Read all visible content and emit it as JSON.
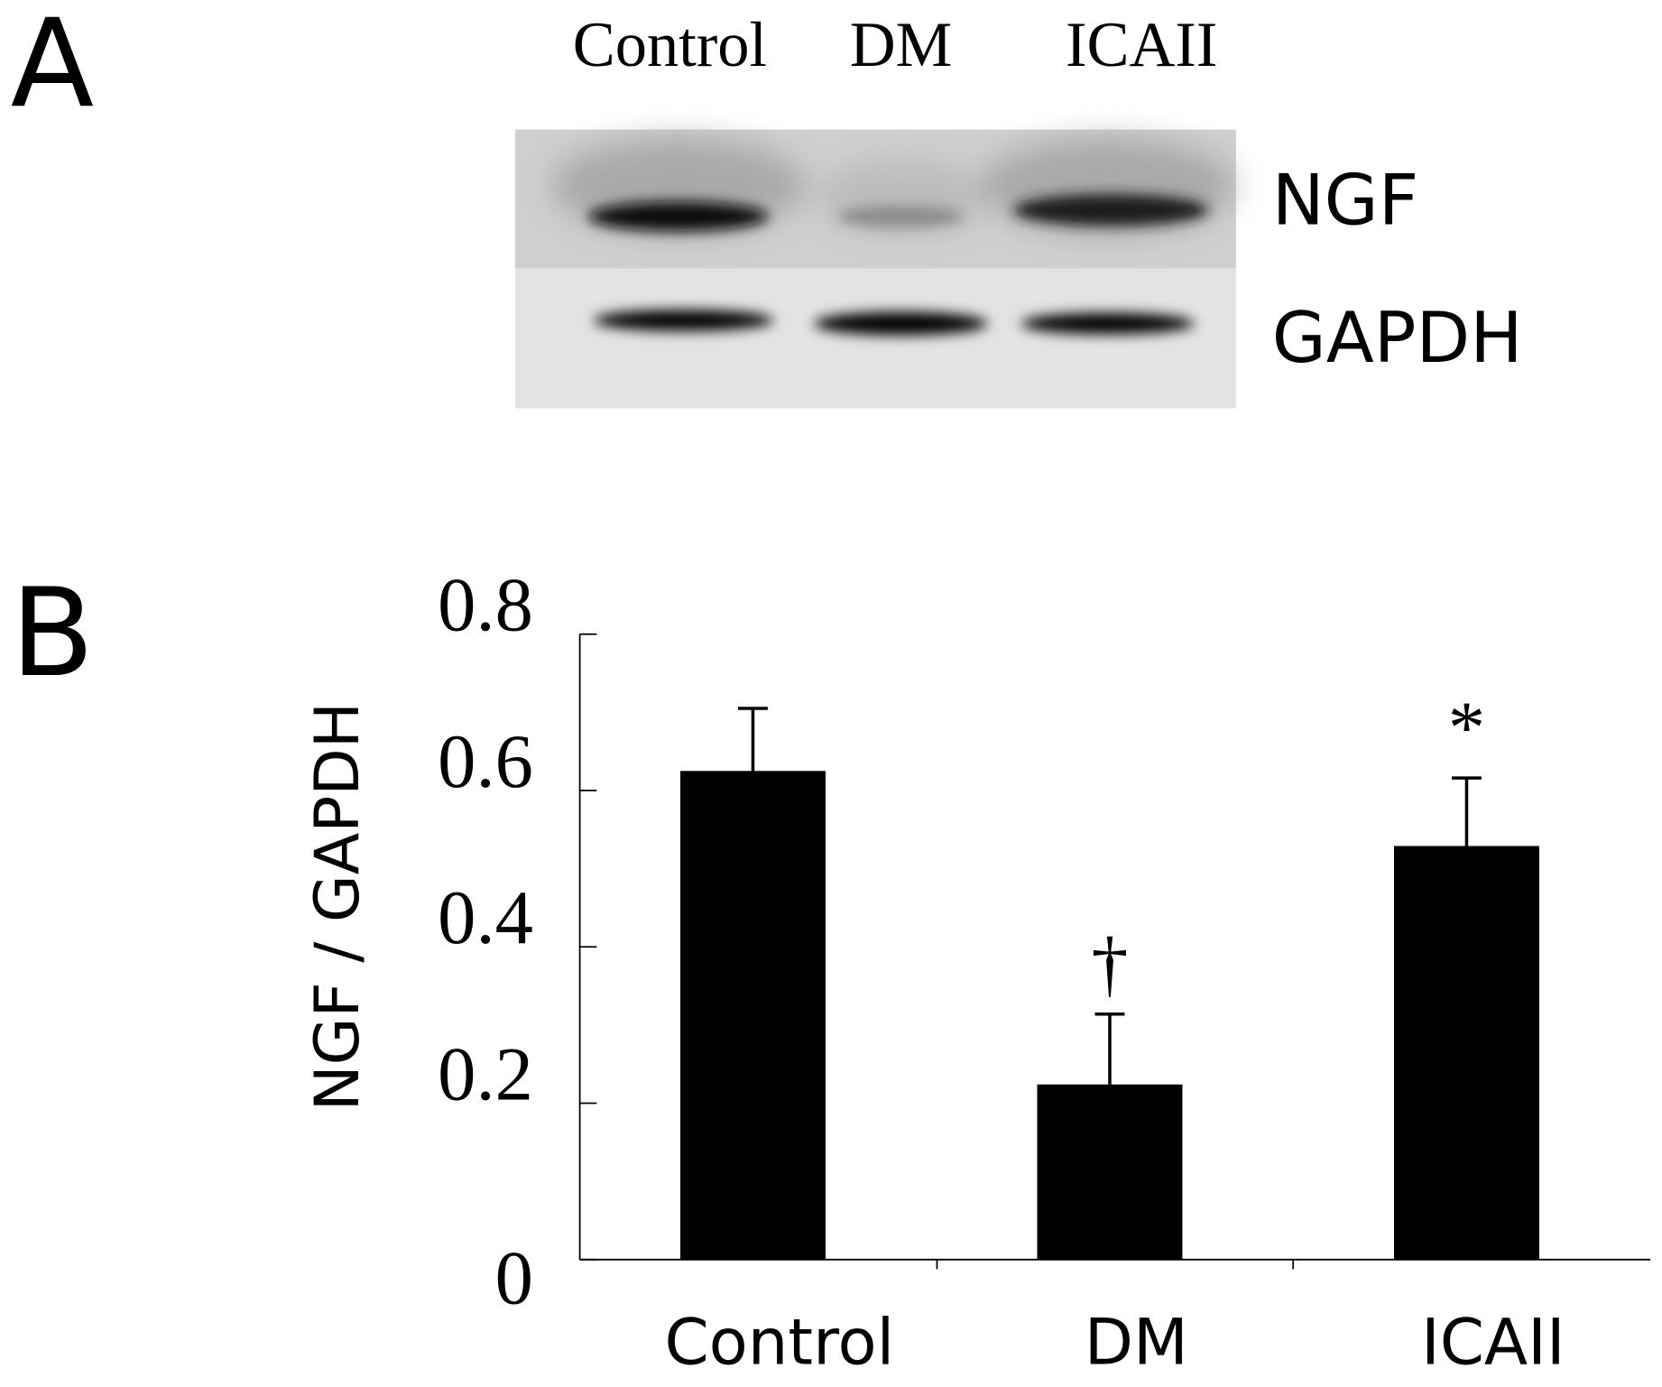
{
  "panel_labels": [
    "A",
    "B"
  ],
  "blot": {
    "lanes": [
      "Control",
      "DM",
      "ICAII"
    ],
    "bands": [
      "NGF",
      "GAPDH"
    ]
  },
  "chart_data": {
    "type": "bar",
    "y_label": "NGF / GAPDH",
    "categories": [
      "Control",
      "DM",
      "ICAII"
    ],
    "values": [
      0.625,
      0.224,
      0.529
    ],
    "errors": [
      0.08,
      0.09,
      0.087
    ],
    "color": "#000000",
    "annotations": [
      {
        "category": "DM",
        "text": "†"
      },
      {
        "category": "ICAII",
        "text": "*"
      }
    ],
    "ylim": [
      0,
      0.8
    ],
    "yticks": [
      0,
      0.2,
      0.4,
      0.6,
      0.8
    ]
  }
}
